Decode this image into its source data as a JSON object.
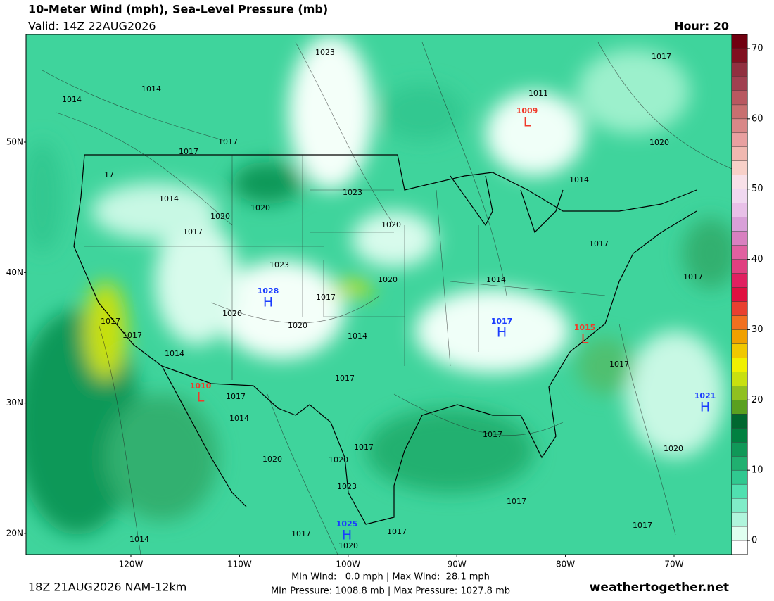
{
  "header": {
    "title": "10-Meter Wind (mph), Sea-Level Pressure (mb)",
    "valid": "Valid: 14Z 22AUG2026",
    "hour": "Hour: 20"
  },
  "latitudes": [
    "50N",
    "40N",
    "30N",
    "20N"
  ],
  "longitudes": [
    "120W",
    "110W",
    "100W",
    "90W",
    "80W",
    "70W"
  ],
  "colorbar": {
    "lim": [
      -2,
      72
    ],
    "ticks": [
      0,
      10,
      20,
      30,
      40,
      50,
      60,
      70
    ],
    "colors": [
      "#ffffff",
      "#e0fff0",
      "#b0f5dc",
      "#80ecc8",
      "#50e0b0",
      "#30c890",
      "#20b070",
      "#109858",
      "#008040",
      "#006830",
      "#5aa020",
      "#90c020",
      "#c8e010",
      "#f0f000",
      "#f0c800",
      "#f0a000",
      "#f07020",
      "#e84030",
      "#e01040",
      "#e02060",
      "#e04080",
      "#e060a0",
      "#d880c0",
      "#d8a0d8",
      "#e8c0e8",
      "#f0d8f0",
      "#f8e0e8",
      "#f8d0c8",
      "#f0b8b0",
      "#e8a0a0",
      "#d88888",
      "#c87070",
      "#b85860",
      "#a04050",
      "#903040",
      "#801020",
      "#700010"
    ]
  },
  "isobar_labels": [
    "1014",
    "1014",
    "1023",
    "1011",
    "1017",
    "1017",
    "1017",
    "1020",
    "17",
    "1014",
    "1023",
    "1020",
    "1020",
    "1017",
    "1014",
    "1020",
    "1017",
    "1023",
    "1020",
    "1017",
    "1014",
    "1017",
    "1020",
    "1020",
    "1017",
    "1017",
    "1014",
    "1014",
    "1017",
    "1017",
    "1017",
    "1014",
    "1017",
    "1017",
    "1020",
    "1020",
    "1020",
    "1023",
    "1017",
    "1017",
    "1017",
    "1017",
    "1014",
    "1020"
  ],
  "centers": [
    {
      "letter": "L",
      "pressure": 1009
    },
    {
      "letter": "H",
      "pressure": 1028
    },
    {
      "letter": "H",
      "pressure": 1017
    },
    {
      "letter": "L",
      "pressure": 1015
    },
    {
      "letter": "L",
      "pressure": 1010
    },
    {
      "letter": "H",
      "pressure": 1021
    },
    {
      "letter": "H",
      "pressure": 1025
    }
  ],
  "footer": {
    "run": "18Z 21AUG2026 NAM-12km",
    "wind": "Min Wind:   0.0 mph | Max Wind:  28.1 mph",
    "pressure": "Min Pressure: 1008.8 mb | Max Pressure: 1027.8 mb",
    "site": "weathertogether.net"
  }
}
